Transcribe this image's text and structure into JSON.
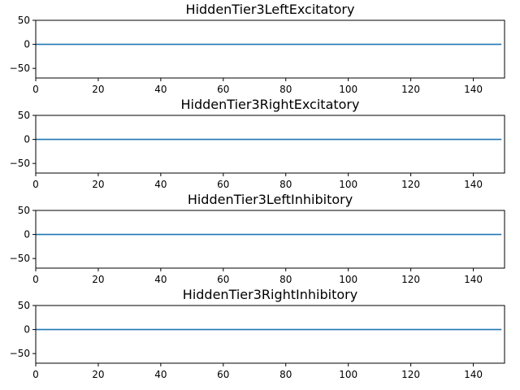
{
  "chart_data": [
    {
      "type": "line",
      "title": "HiddenTier3LeftExcitatory",
      "xlim": [
        0,
        150
      ],
      "ylim": [
        -70,
        50
      ],
      "xticks": [
        0,
        20,
        40,
        60,
        80,
        100,
        120,
        140
      ],
      "yticks": [
        50,
        0,
        -50
      ],
      "grid": false,
      "series": [
        {
          "color": "#1f77b4",
          "x": [
            0,
            149
          ],
          "y": [
            0,
            0
          ]
        }
      ]
    },
    {
      "type": "line",
      "title": "HiddenTier3RightExcitatory",
      "xlim": [
        0,
        150
      ],
      "ylim": [
        -70,
        50
      ],
      "xticks": [
        0,
        20,
        40,
        60,
        80,
        100,
        120,
        140
      ],
      "yticks": [
        50,
        0,
        -50
      ],
      "grid": false,
      "series": [
        {
          "color": "#1f77b4",
          "x": [
            0,
            149
          ],
          "y": [
            0,
            0
          ]
        }
      ]
    },
    {
      "type": "line",
      "title": "HiddenTier3LeftInhibitory",
      "xlim": [
        0,
        150
      ],
      "ylim": [
        -70,
        50
      ],
      "xticks": [
        0,
        20,
        40,
        60,
        80,
        100,
        120,
        140
      ],
      "yticks": [
        50,
        0,
        -50
      ],
      "grid": false,
      "series": [
        {
          "color": "#1f77b4",
          "x": [
            0,
            149
          ],
          "y": [
            0,
            0
          ]
        }
      ]
    },
    {
      "type": "line",
      "title": "HiddenTier3RightInhibitory",
      "xlim": [
        0,
        150
      ],
      "ylim": [
        -70,
        50
      ],
      "xticks": [
        0,
        20,
        40,
        60,
        80,
        100,
        120,
        140
      ],
      "yticks": [
        50,
        0,
        -50
      ],
      "grid": false,
      "series": [
        {
          "color": "#1f77b4",
          "x": [
            0,
            149
          ],
          "y": [
            0,
            0
          ]
        }
      ]
    }
  ]
}
